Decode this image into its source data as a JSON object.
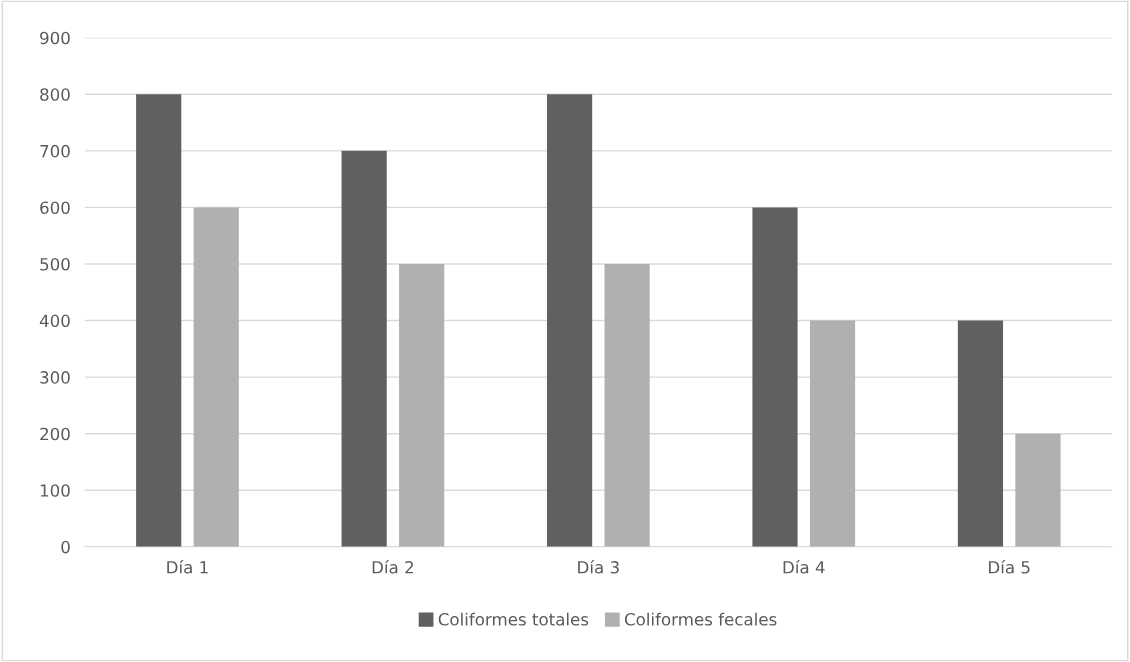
{
  "chart_data": {
    "type": "bar",
    "categories": [
      "Día 1",
      "Día 2",
      "Día 3",
      "Día 4",
      "Día 5"
    ],
    "series": [
      {
        "name": "Coliformes totales",
        "color": "#606060",
        "values": [
          800,
          700,
          800,
          600,
          400
        ]
      },
      {
        "name": "Coliformes fecales",
        "color": "#b0b0b0",
        "values": [
          600,
          500,
          500,
          400,
          200
        ]
      }
    ],
    "ylim": [
      0,
      900
    ],
    "yticks": [
      0,
      100,
      200,
      300,
      400,
      500,
      600,
      700,
      800,
      900
    ],
    "grid": "y",
    "legend": "bottom"
  }
}
